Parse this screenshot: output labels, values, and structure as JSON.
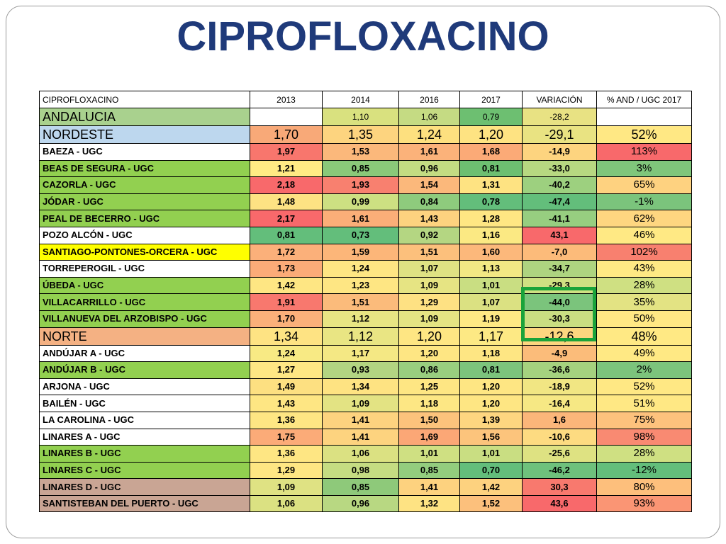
{
  "title": "CIPROFLOXACINO",
  "header": [
    "CIPROFLOXACINO",
    "2013",
    "2014",
    "2016",
    "2017",
    "VARIACIÓN",
    "% AND / UGC 2017"
  ],
  "rows": [
    {
      "name": "ANDALUCIA",
      "v2013": "",
      "v2014": "1,10",
      "v2016": "1,06",
      "v2017": "0,79",
      "var": "-28,2",
      "pct": "",
      "big": true,
      "small_vals": true,
      "c": [
        "#a9d18e",
        "#ffffff",
        "#d9e17f",
        "#c5db83",
        "#6dbf71",
        "#e8e283",
        "#ffffff"
      ]
    },
    {
      "name": "NORDESTE",
      "v2013": "1,70",
      "v2014": "1,35",
      "v2016": "1,24",
      "v2017": "1,20",
      "var": "-29,1",
      "pct": "52%",
      "big": true,
      "c": [
        "#bdd7ee",
        "#f8a978",
        "#fdd47f",
        "#fde07f",
        "#fee382",
        "#e9e382",
        "#ffe884"
      ]
    },
    {
      "name": "BAEZA - UGC",
      "v2013": "1,97",
      "v2014": "1,53",
      "v2016": "1,61",
      "v2017": "1,68",
      "var": "-14,9",
      "pct": "113%",
      "c": [
        "#ffffff",
        "#f8766d",
        "#fbb87b",
        "#fbb27a",
        "#fbaa77",
        "#fdd47f",
        "#f8696b"
      ]
    },
    {
      "name": "BEAS DE SEGURA - UGC",
      "v2013": "1,21",
      "v2014": "0,85",
      "v2016": "0,96",
      "v2017": "0,81",
      "var": "-33,0",
      "pct": "3%",
      "c": [
        "#92d050",
        "#ffeb84",
        "#8ac979",
        "#c3dc82",
        "#6dbf71",
        "#b7d881",
        "#7fc67b"
      ]
    },
    {
      "name": "CAZORLA - UGC",
      "v2013": "2,18",
      "v2014": "1,93",
      "v2016": "1,54",
      "v2017": "1,31",
      "var": "-40,2",
      "pct": "65%",
      "c": [
        "#92d050",
        "#f8696b",
        "#f8806f",
        "#fbb87b",
        "#fee382",
        "#9dd07f",
        "#fed280"
      ]
    },
    {
      "name": "JÓDAR - UGC",
      "v2013": "1,48",
      "v2014": "0,99",
      "v2016": "0,84",
      "v2017": "0,78",
      "var": "-47,4",
      "pct": "-1%",
      "c": [
        "#92d050",
        "#fde283",
        "#cde082",
        "#8ecb7d",
        "#63be7b",
        "#63be7b",
        "#7bc47c"
      ]
    },
    {
      "name": "PEAL DE BECERRO - UGC",
      "v2013": "2,17",
      "v2014": "1,61",
      "v2016": "1,43",
      "v2017": "1,28",
      "var": "-41,1",
      "pct": "62%",
      "c": [
        "#92d050",
        "#f8696b",
        "#fbae78",
        "#fdd27f",
        "#fee683",
        "#97ce80",
        "#fed680"
      ]
    },
    {
      "name": "POZO ALCÓN - UGC",
      "v2013": "0,81",
      "v2014": "0,73",
      "v2016": "0,92",
      "v2017": "1,16",
      "var": "43,1",
      "pct": "46%",
      "c": [
        "#ffffff",
        "#63be7b",
        "#63be7b",
        "#b4d682",
        "#fbe983",
        "#f8696b",
        "#ffe984"
      ]
    },
    {
      "name": "SANTIAGO-PONTONES-ORCERA - UGC",
      "v2013": "1,72",
      "v2014": "1,59",
      "v2016": "1,51",
      "v2017": "1,60",
      "var": "-7,0",
      "pct": "102%",
      "c": [
        "#ffff00",
        "#fbb07a",
        "#fcb679",
        "#fcc07c",
        "#fcb87b",
        "#fcbb7a",
        "#f8806f"
      ]
    },
    {
      "name": "TORREPEROGIL - UGC",
      "v2013": "1,73",
      "v2014": "1,24",
      "v2016": "1,07",
      "v2017": "1,13",
      "var": "-34,7",
      "pct": "43%",
      "c": [
        "#ffffff",
        "#fbab78",
        "#fee683",
        "#dfe283",
        "#f2e884",
        "#aed480",
        "#fee984"
      ]
    },
    {
      "name": "ÚBEDA - UGC",
      "v2013": "1,42",
      "v2014": "1,23",
      "v2016": "1,09",
      "v2017": "1,01",
      "var": "-29,3",
      "pct": "28%",
      "c": [
        "#92d050",
        "#fee683",
        "#fee683",
        "#e6e483",
        "#c9de82",
        "#cfe082",
        "#cfe082"
      ]
    },
    {
      "name": "VILLACARRILLO - UGC",
      "v2013": "1,91",
      "v2014": "1,51",
      "v2016": "1,29",
      "v2017": "1,07",
      "var": "-44,0",
      "pct": "35%",
      "c": [
        "#92d050",
        "#f8786e",
        "#fbbb7b",
        "#fee183",
        "#dbe182",
        "#7bc47c",
        "#e3e383"
      ]
    },
    {
      "name": "VILLANUEVA DEL ARZOBISPO - UGC",
      "v2013": "1,70",
      "v2014": "1,12",
      "v2016": "1,09",
      "v2017": "1,19",
      "var": "-30,3",
      "pct": "50%",
      "c": [
        "#92d050",
        "#fbb07a",
        "#e8e583",
        "#e5e483",
        "#fee984",
        "#c9de82",
        "#ffe884"
      ]
    },
    {
      "name": "NORTE",
      "v2013": "1,34",
      "v2014": "1,12",
      "v2016": "1,20",
      "v2017": "1,17",
      "var": "-12,6",
      "pct": "48%",
      "big": true,
      "c": [
        "#f4b183",
        "#fee383",
        "#e9e583",
        "#fee683",
        "#fde984",
        "#fcd67f",
        "#ffe984"
      ]
    },
    {
      "name": "ANDÚJAR A - UGC",
      "v2013": "1,24",
      "v2014": "1,17",
      "v2016": "1,20",
      "v2017": "1,18",
      "var": "-4,9",
      "pct": "49%",
      "c": [
        "#ffffff",
        "#f8ea84",
        "#f4e884",
        "#fee683",
        "#fee683",
        "#fbbc7a",
        "#ffe984"
      ]
    },
    {
      "name": "ANDÚJAR B - UGC",
      "v2013": "1,27",
      "v2014": "0,93",
      "v2016": "0,86",
      "v2017": "0,81",
      "var": "-36,6",
      "pct": "2%",
      "c": [
        "#92d050",
        "#fee784",
        "#b3d582",
        "#99cf7f",
        "#7cc47c",
        "#a5d27f",
        "#7cc47c"
      ]
    },
    {
      "name": "ARJONA - UGC",
      "v2013": "1,49",
      "v2014": "1,34",
      "v2016": "1,25",
      "v2017": "1,20",
      "var": "-18,9",
      "pct": "52%",
      "c": [
        "#ffffff",
        "#fde081",
        "#fee382",
        "#fee683",
        "#fee683",
        "#f1e683",
        "#ffe884"
      ]
    },
    {
      "name": "BAILÉN - UGC",
      "v2013": "1,43",
      "v2014": "1,09",
      "v2016": "1,18",
      "v2017": "1,20",
      "var": "-16,4",
      "pct": "51%",
      "c": [
        "#ffffff",
        "#fee683",
        "#e3e383",
        "#fde784",
        "#fee683",
        "#f6e884",
        "#ffe884"
      ]
    },
    {
      "name": "LA CAROLINA - UGC",
      "v2013": "1,36",
      "v2014": "1,41",
      "v2016": "1,50",
      "v2017": "1,39",
      "var": "1,6",
      "pct": "75%",
      "c": [
        "#ffffff",
        "#fee683",
        "#fdd37f",
        "#fcc37c",
        "#fdd680",
        "#fbb67a",
        "#fdc27d"
      ]
    },
    {
      "name": "LINARES A - UGC",
      "v2013": "1,75",
      "v2014": "1,41",
      "v2016": "1,69",
      "v2017": "1,56",
      "var": "-10,6",
      "pct": "98%",
      "c": [
        "#ffffff",
        "#fbab78",
        "#fdd37f",
        "#fba776",
        "#fcc47c",
        "#fddb81",
        "#f98a72"
      ]
    },
    {
      "name": "LINARES B - UGC",
      "v2013": "1,36",
      "v2014": "1,06",
      "v2016": "1,01",
      "v2017": "1,01",
      "var": "-25,6",
      "pct": "28%",
      "c": [
        "#92d050",
        "#fee683",
        "#dbe182",
        "#cfe082",
        "#c9de82",
        "#dee282",
        "#cfe082"
      ]
    },
    {
      "name": "LINARES C - UGC",
      "v2013": "1,29",
      "v2014": "0,98",
      "v2016": "0,85",
      "v2017": "0,70",
      "var": "-46,2",
      "pct": "-12%",
      "c": [
        "#92d050",
        "#fee683",
        "#c5dc82",
        "#93cd7e",
        "#63be7b",
        "#6ec17c",
        "#63be7b"
      ]
    },
    {
      "name": "LINARES D - UGC",
      "v2013": "1,09",
      "v2014": "0,85",
      "v2016": "1,41",
      "v2017": "1,42",
      "var": "30,3",
      "pct": "80%",
      "c": [
        "#c9a594",
        "#dfe283",
        "#8ec97a",
        "#fdd27f",
        "#fdd27f",
        "#f8796e",
        "#fdbf7c"
      ]
    },
    {
      "name": "SANTISTEBAN DEL PUERTO - UGC",
      "v2013": "1,06",
      "v2014": "0,96",
      "v2016": "1,32",
      "v2017": "1,52",
      "var": "43,6",
      "pct": "93%",
      "c": [
        "#c9a594",
        "#dbe182",
        "#b8d882",
        "#fee383",
        "#fcc07c",
        "#f8696b",
        "#fa9574"
      ]
    }
  ]
}
